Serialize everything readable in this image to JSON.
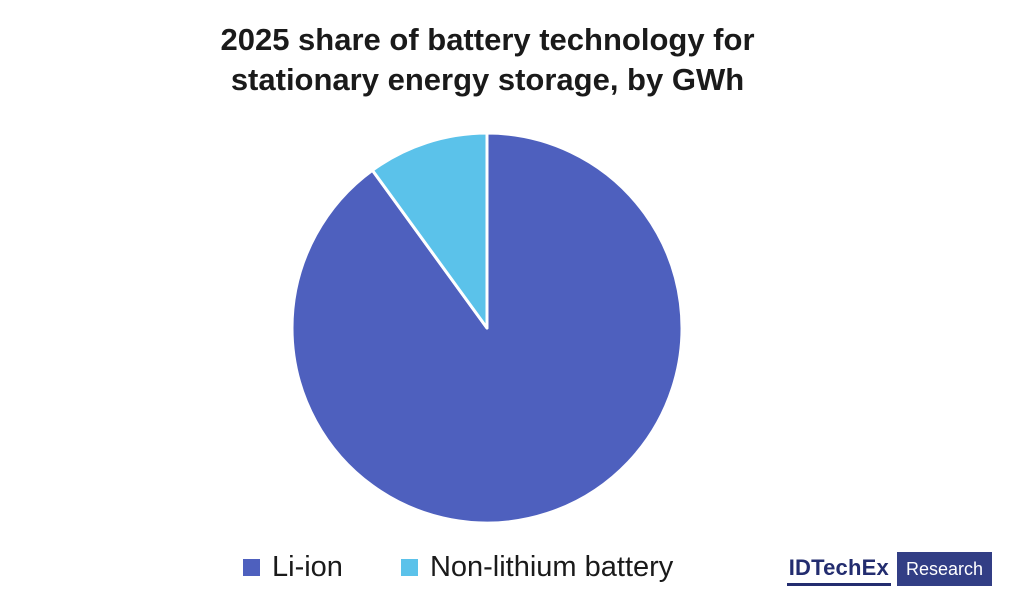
{
  "chart_data": {
    "type": "pie",
    "title": "2025 share of battery technology for stationary energy storage, by GWh",
    "title_lines": [
      "2025 share of battery technology for",
      "stationary energy storage, by GWh"
    ],
    "start_angle_deg": 0,
    "direction": "clockwise",
    "values_are": "percent share (estimated from slice angles)",
    "series": [
      {
        "name": "Li-ion",
        "value": 90,
        "color": "#4E60BE"
      },
      {
        "name": "Non-lithium battery",
        "value": 10,
        "color": "#5BC2EA"
      }
    ],
    "legend_position": "bottom",
    "slice_separator_color": "#ffffff"
  },
  "legend": {
    "items": [
      {
        "label": "Li-ion"
      },
      {
        "label": "Non-lithium battery"
      }
    ]
  },
  "logo": {
    "brand": "IDTechEx",
    "suffix": "Research",
    "brand_color": "#232D6F",
    "box_color": "#323E85",
    "suffix_color": "#FFFFFF"
  }
}
